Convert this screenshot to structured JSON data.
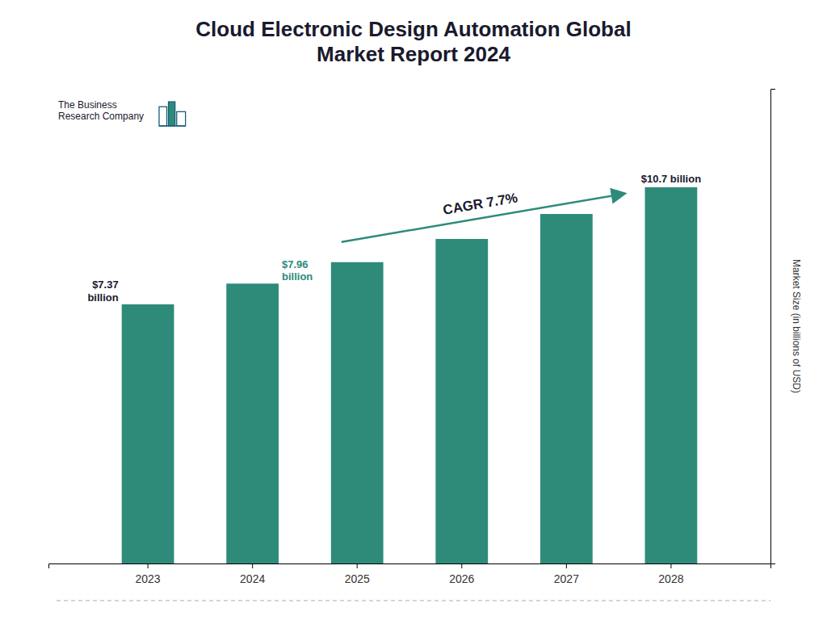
{
  "chart_data": {
    "type": "bar",
    "title": "Cloud Electronic Design Automation Global\nMarket Report 2024",
    "categories": [
      "2023",
      "2024",
      "2025",
      "2026",
      "2027",
      "2028"
    ],
    "values": [
      7.37,
      7.96,
      8.57,
      9.23,
      9.94,
      10.7
    ],
    "color": "#2e8b7a",
    "ylim": [
      0,
      13.5
    ],
    "ylabel": "Market Size (in billions of USD)",
    "tick_labels": "x",
    "annotations": [
      "$7.37\nbillion",
      "$7.96\nbillion",
      "$10.7 billion",
      "CAGR 7.7%",
      "The Business\nResearch Company"
    ]
  }
}
